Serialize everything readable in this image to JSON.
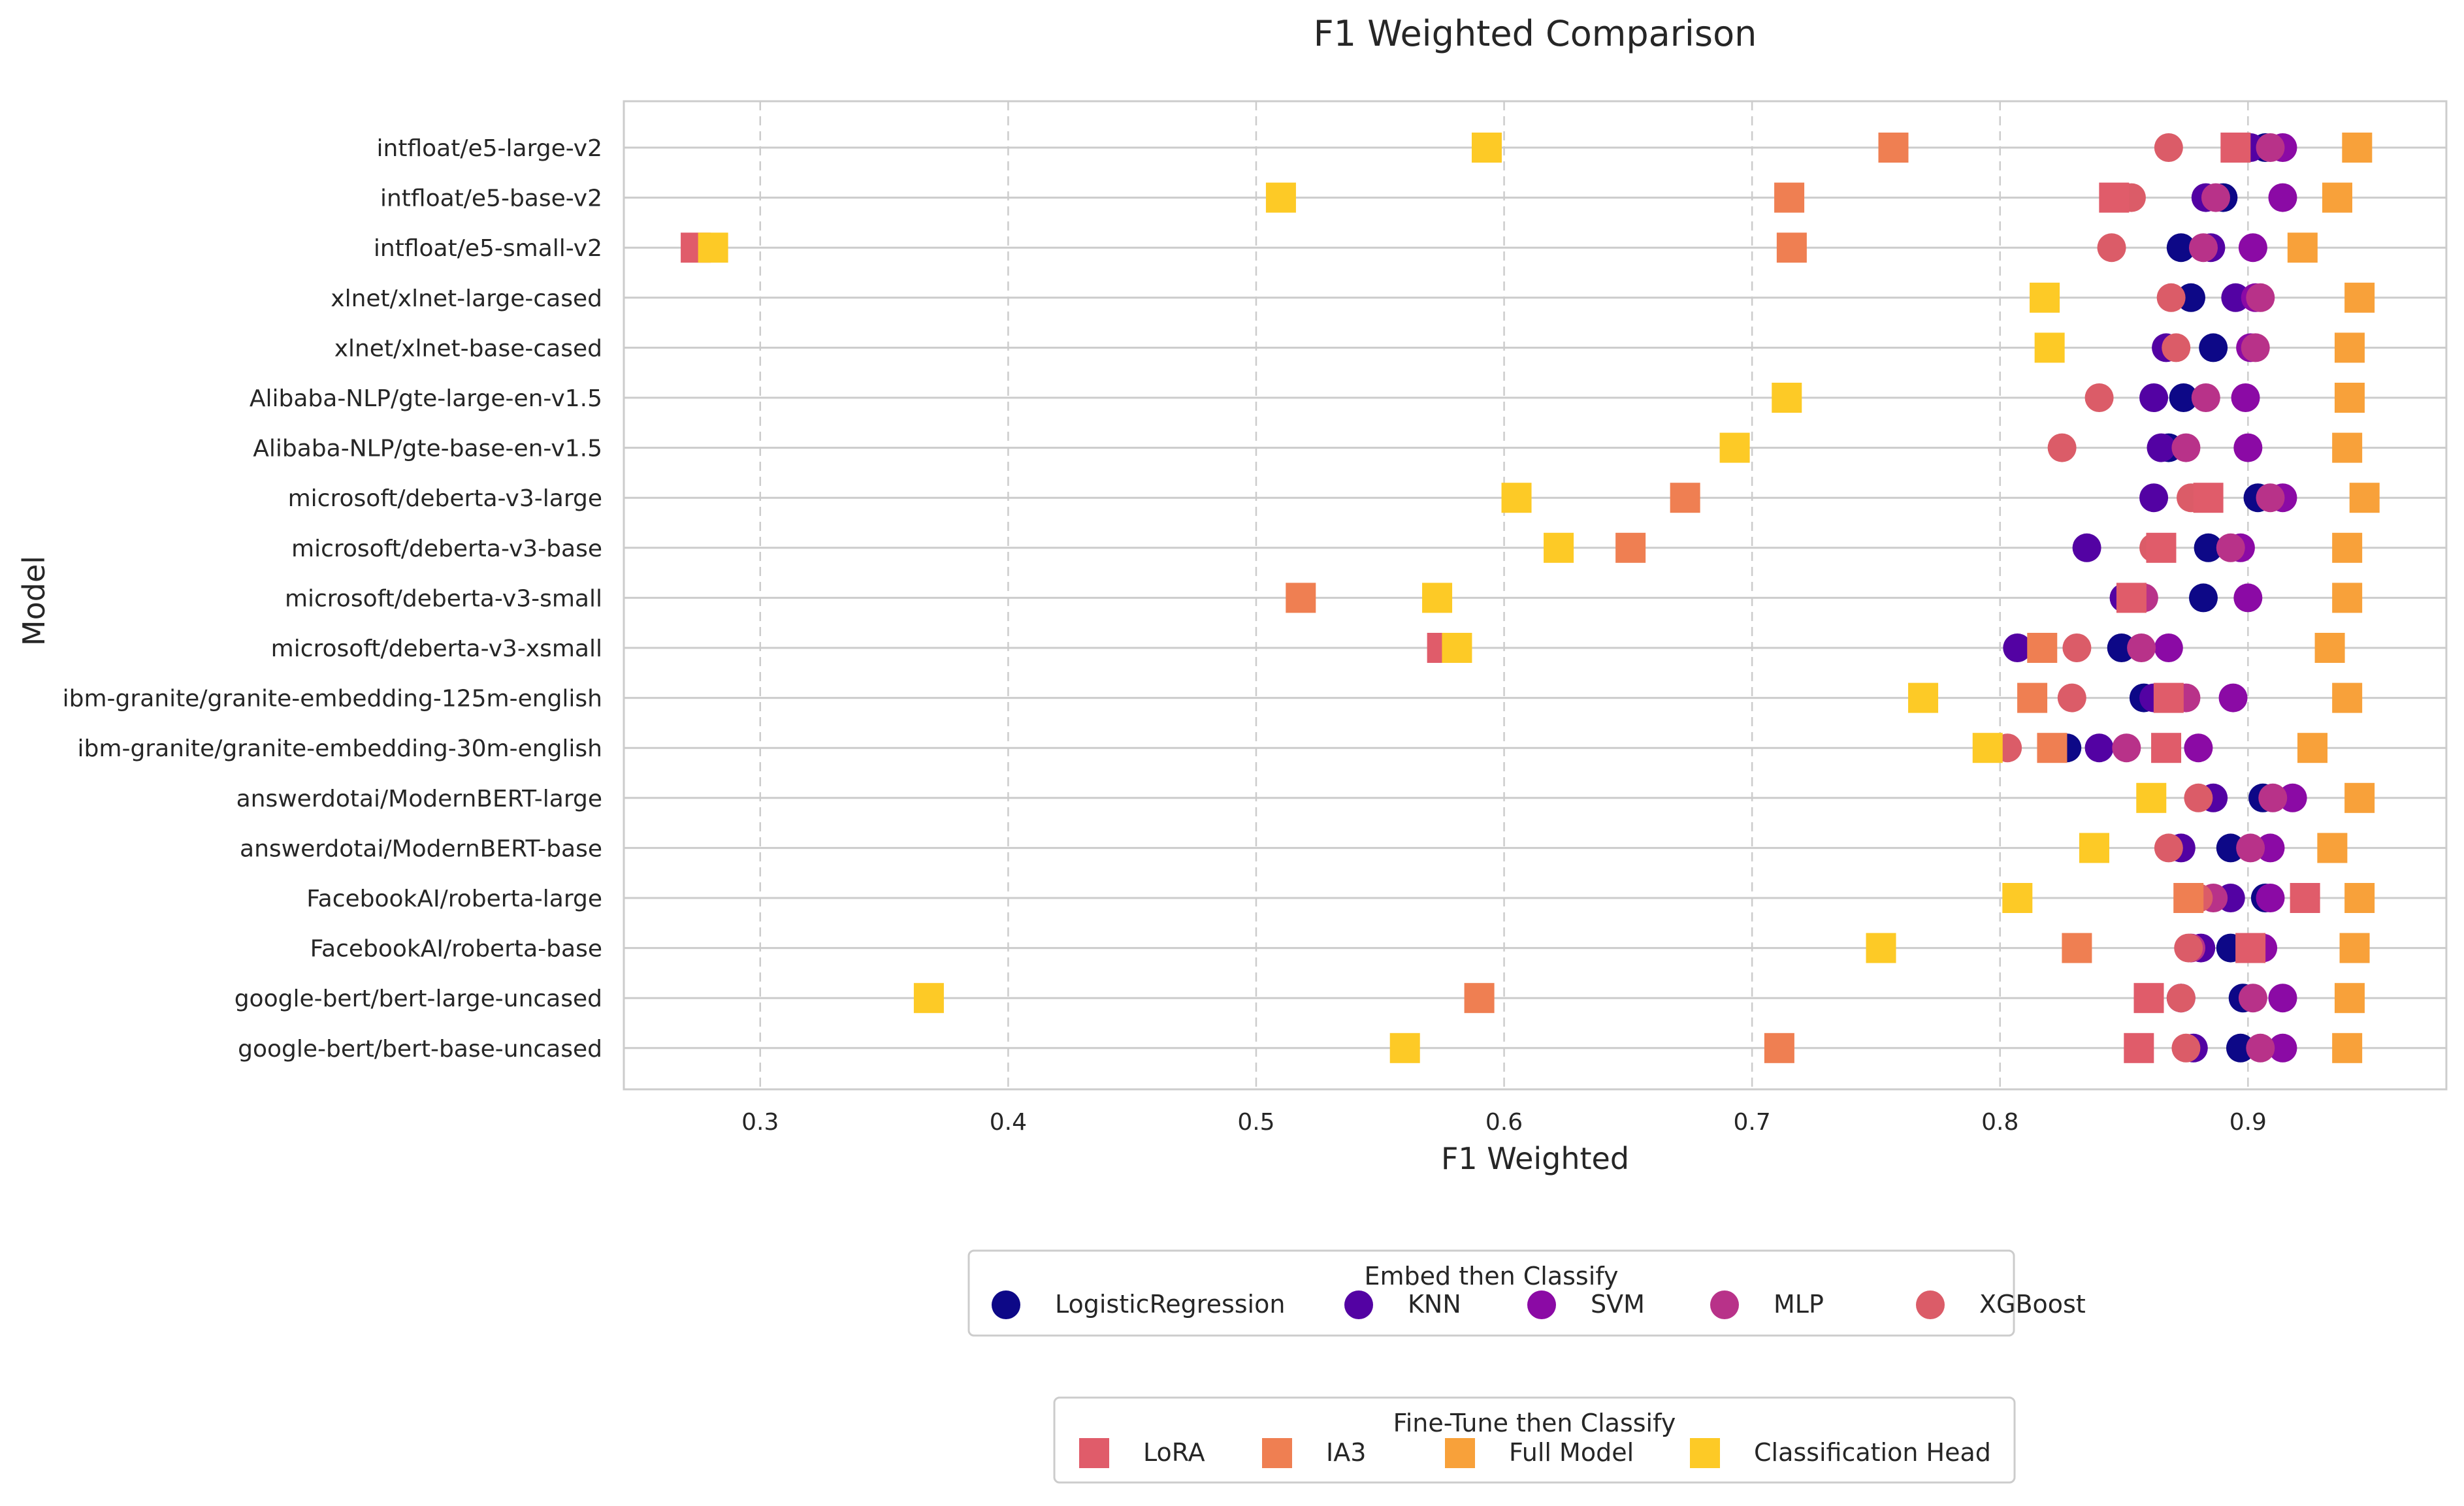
{
  "chart_data": {
    "type": "scatter",
    "title": "F1 Weighted Comparison",
    "xlabel": "F1 Weighted",
    "ylabel": "Model",
    "xlim": [
      0.245,
      0.98
    ],
    "xticks": [
      0.3,
      0.4,
      0.5,
      0.6,
      0.7,
      0.8,
      0.9
    ],
    "xtick_labels": [
      "0.3",
      "0.4",
      "0.5",
      "0.6",
      "0.7",
      "0.8",
      "0.9"
    ],
    "grid": true,
    "categories": [
      "intfloat/e5-large-v2",
      "intfloat/e5-base-v2",
      "intfloat/e5-small-v2",
      "xlnet/xlnet-large-cased",
      "xlnet/xlnet-base-cased",
      "Alibaba-NLP/gte-large-en-v1.5",
      "Alibaba-NLP/gte-base-en-v1.5",
      "microsoft/deberta-v3-large",
      "microsoft/deberta-v3-base",
      "microsoft/deberta-v3-small",
      "microsoft/deberta-v3-xsmall",
      "ibm-granite/granite-embedding-125m-english",
      "ibm-granite/granite-embedding-30m-english",
      "answerdotai/ModernBERT-large",
      "answerdotai/ModernBERT-base",
      "FacebookAI/roberta-large",
      "FacebookAI/roberta-base",
      "google-bert/bert-large-uncased",
      "google-bert/bert-base-uncased"
    ],
    "series": [
      {
        "name": "LogisticRegression",
        "group": "embed",
        "marker": "circle",
        "color": "#0d0887",
        "values": [
          0.907,
          0.89,
          0.873,
          0.877,
          0.886,
          0.874,
          0.868,
          0.904,
          0.884,
          0.882,
          0.849,
          0.858,
          0.827,
          0.906,
          0.893,
          0.907,
          0.893,
          0.898,
          0.897
        ]
      },
      {
        "name": "KNN",
        "group": "embed",
        "marker": "circle",
        "color": "#5302a3",
        "values": [
          0.901,
          0.883,
          0.885,
          0.895,
          0.867,
          0.862,
          0.865,
          0.862,
          0.835,
          0.85,
          0.807,
          0.862,
          0.84,
          0.886,
          0.873,
          0.893,
          0.881,
          0.873,
          0.878
        ]
      },
      {
        "name": "SVM",
        "group": "embed",
        "marker": "circle",
        "color": "#8b0aa5",
        "values": [
          0.914,
          0.914,
          0.902,
          0.903,
          0.901,
          0.899,
          0.9,
          0.914,
          0.897,
          0.9,
          0.868,
          0.894,
          0.88,
          0.918,
          0.909,
          0.909,
          0.906,
          0.914,
          0.914
        ]
      },
      {
        "name": "MLP",
        "group": "embed",
        "marker": "circle",
        "color": "#b83289",
        "values": [
          0.909,
          0.887,
          0.882,
          0.905,
          0.903,
          0.883,
          0.875,
          0.909,
          0.893,
          0.858,
          0.857,
          0.875,
          0.851,
          0.91,
          0.901,
          0.886,
          0.877,
          0.902,
          0.905
        ]
      },
      {
        "name": "XGBoost",
        "group": "embed",
        "marker": "circle",
        "color": "#db5c68",
        "values": [
          0.868,
          0.853,
          0.845,
          0.869,
          0.871,
          0.84,
          0.825,
          0.877,
          0.862,
          0.853,
          0.831,
          0.829,
          0.803,
          0.88,
          0.868,
          0.88,
          0.876,
          0.873,
          0.875
        ]
      },
      {
        "name": "LoRA",
        "group": "finetune",
        "marker": "square",
        "color": "#e05c6a",
        "values": [
          0.895,
          0.846,
          0.274,
          null,
          null,
          null,
          null,
          0.884,
          0.865,
          0.853,
          0.575,
          0.868,
          0.867,
          null,
          null,
          0.923,
          0.901,
          0.86,
          0.856
        ]
      },
      {
        "name": "IA3",
        "group": "finetune",
        "marker": "square",
        "color": "#ef7f52",
        "values": [
          0.757,
          0.715,
          0.716,
          null,
          null,
          null,
          null,
          0.673,
          0.651,
          0.518,
          0.817,
          0.813,
          0.821,
          null,
          null,
          0.876,
          0.831,
          0.59,
          0.711
        ]
      },
      {
        "name": "Full Model",
        "group": "finetune",
        "marker": "square",
        "color": "#f8a13a",
        "values": [
          0.944,
          0.936,
          0.922,
          0.945,
          0.941,
          0.941,
          0.94,
          0.947,
          0.94,
          0.94,
          0.933,
          0.94,
          0.926,
          0.945,
          0.934,
          0.945,
          0.943,
          0.941,
          0.94
        ]
      },
      {
        "name": "Classification Head",
        "group": "finetune",
        "marker": "square",
        "color": "#fdca26",
        "values": [
          0.593,
          0.51,
          0.281,
          0.818,
          0.82,
          0.714,
          0.693,
          0.605,
          0.622,
          0.573,
          0.581,
          0.769,
          0.795,
          0.861,
          0.838,
          0.807,
          0.752,
          0.368,
          0.56
        ]
      }
    ],
    "legends": [
      {
        "title": "Embed then Classify",
        "entries": [
          "LogisticRegression",
          "KNN",
          "SVM",
          "MLP",
          "XGBoost"
        ],
        "placement": "bottom-center"
      },
      {
        "title": "Fine-Tune then Classify",
        "entries": [
          "LoRA",
          "IA3",
          "Full Model",
          "Classification Head"
        ],
        "placement": "bottom-center"
      }
    ]
  }
}
